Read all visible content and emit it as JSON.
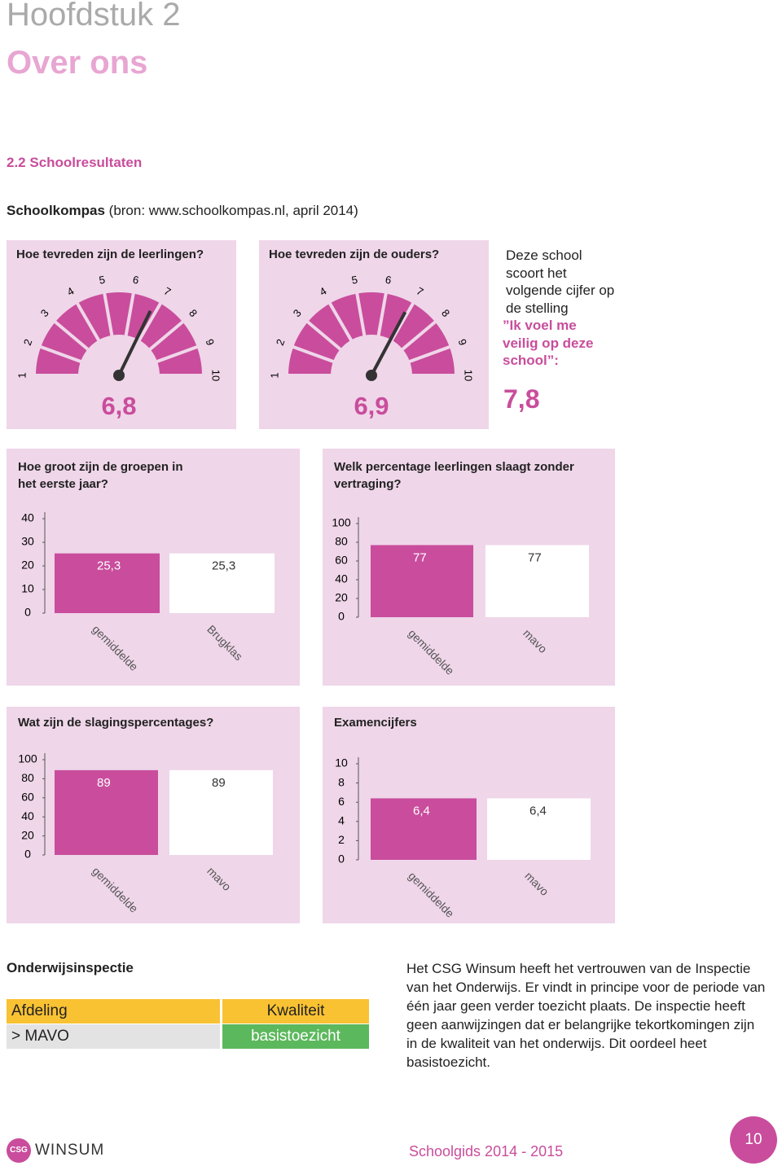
{
  "header": {
    "chapter": "Hoofdstuk 2",
    "title": "Over ons",
    "section": "2.2 Schoolresultaten"
  },
  "source": {
    "name": "Schoolkompas",
    "text": "(bron: www.schoolkompas.nl, april 2014)"
  },
  "chart_data": [
    {
      "type": "gauge",
      "title": "Hoe tevreden zijn de leerlingen?",
      "values": [
        6.8
      ],
      "value_labels": [
        "6,8"
      ],
      "ylim": [
        1,
        10
      ],
      "yticks": [
        1,
        2,
        3,
        4,
        5,
        6,
        7,
        8,
        9,
        10
      ],
      "color": "#c94d9c"
    },
    {
      "type": "gauge",
      "title": "Hoe tevreden zijn de ouders?",
      "values": [
        6.9
      ],
      "value_labels": [
        "6,9"
      ],
      "ylim": [
        1,
        10
      ],
      "yticks": [
        1,
        2,
        3,
        4,
        5,
        6,
        7,
        8,
        9,
        10
      ],
      "color": "#c94d9c"
    },
    {
      "type": "bar",
      "title": "Hoe groot zijn de groepen in het eerste jaar?",
      "categories": [
        "gemiddelde",
        "Brugklas"
      ],
      "values": [
        25.3,
        25.3
      ],
      "value_labels": [
        "25,3",
        "25,3"
      ],
      "colors": [
        "#c94d9c",
        "#ffffff"
      ],
      "ylim": [
        0,
        40
      ],
      "yticks": [
        0,
        10,
        20,
        30,
        40
      ]
    },
    {
      "type": "bar",
      "title": "Welk percentage leerlingen slaagt zonder vertraging?",
      "categories": [
        "gemiddelde",
        "mavo"
      ],
      "values": [
        77,
        77
      ],
      "colors": [
        "#c94d9c",
        "#ffffff"
      ],
      "ylim": [
        0,
        100
      ],
      "yticks": [
        0,
        20,
        40,
        60,
        80,
        100
      ]
    },
    {
      "type": "bar",
      "title": "Wat zijn de slagingspercentages?",
      "categories": [
        "gemiddelde",
        "mavo"
      ],
      "values": [
        89,
        89
      ],
      "colors": [
        "#c94d9c",
        "#ffffff"
      ],
      "ylim": [
        0,
        100
      ],
      "yticks": [
        0,
        20,
        40,
        60,
        80,
        100
      ]
    },
    {
      "type": "bar",
      "title": "Examencijfers",
      "categories": [
        "gemiddelde",
        "mavo"
      ],
      "values": [
        6.4,
        6.4
      ],
      "value_labels": [
        "6,4",
        "6,4"
      ],
      "colors": [
        "#c94d9c",
        "#ffffff"
      ],
      "ylim": [
        0,
        10
      ],
      "yticks": [
        0,
        2,
        4,
        6,
        8,
        10
      ]
    }
  ],
  "statement": {
    "intro": "Deze school scoort het volgende cijfer op de stelling",
    "quote": "”Ik voel me veilig op deze school”:",
    "score": "7,8"
  },
  "inspection": {
    "title": "Onderwijsinspectie",
    "table": {
      "header": [
        "Afdeling",
        "Kwaliteit"
      ],
      "rows": [
        [
          "> MAVO",
          "basistoezicht"
        ]
      ]
    },
    "text": "Het CSG Winsum heeft het vertrouwen van de Inspectie van het Onderwijs. Er vindt in principe voor de periode van één jaar geen verder toezicht plaats. De inspectie heeft geen aanwijzingen dat er belangrijke tekortkomingen zijn in de kwaliteit van het onderwijs. Dit oordeel heet basistoezicht."
  },
  "footer": {
    "logo_badge": "CSG",
    "logo_text": "WINSUM",
    "title": "Schoolgids 2014 - 2015",
    "page": "10"
  }
}
